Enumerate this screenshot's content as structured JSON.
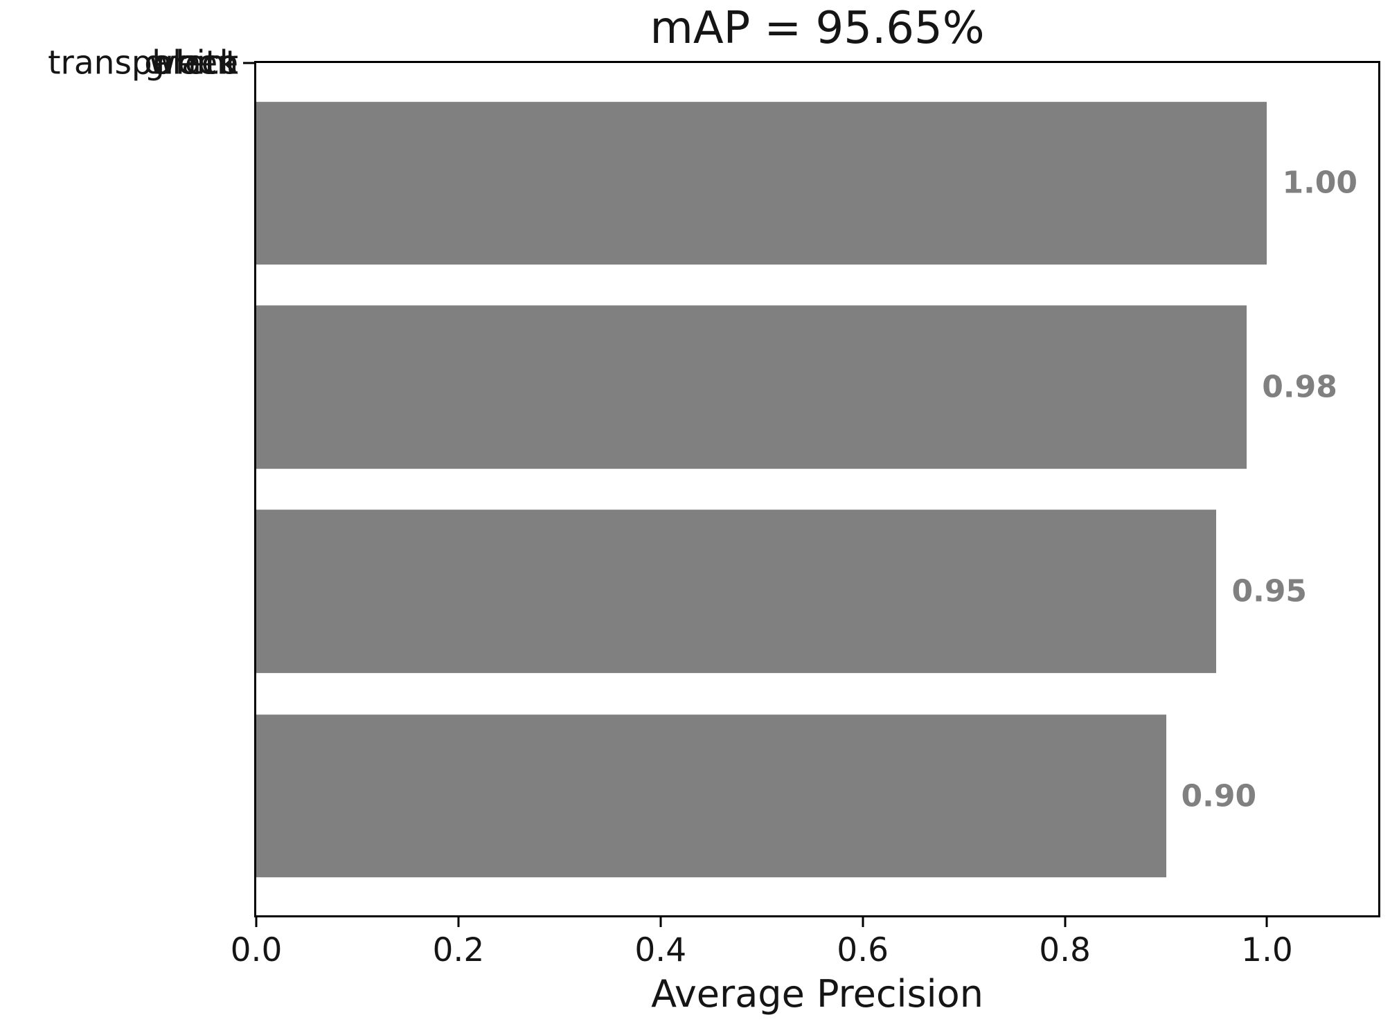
{
  "chart_data": {
    "type": "bar",
    "orientation": "horizontal",
    "title": "mAP = 95.65%",
    "categories": [
      "white",
      "transparent",
      "green",
      "black"
    ],
    "values": [
      1.0,
      0.98,
      0.95,
      0.9
    ],
    "value_labels": [
      "1.00",
      "0.98",
      "0.95",
      "0.90"
    ],
    "series": [
      {
        "name": "Average Precision",
        "values": [
          1.0,
          0.98,
          0.95,
          0.9
        ]
      }
    ],
    "xlabel": "Average Precision",
    "ylabel": "",
    "x_ticks": [
      "0.0",
      "0.2",
      "0.4",
      "0.6",
      "0.8",
      "1.0"
    ],
    "xlim": [
      0,
      1.11
    ],
    "grid": false,
    "legend": false,
    "bar_color": "#808080",
    "value_label_color": "#808080",
    "axis_color": "#000000",
    "background_color": "#ffffff"
  }
}
